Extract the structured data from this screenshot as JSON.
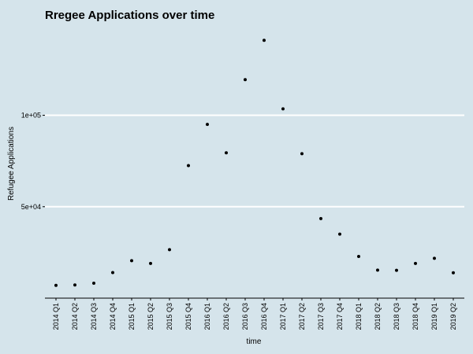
{
  "chart_data": {
    "type": "scatter",
    "title": "Rregee Applications over time",
    "xlabel": "time",
    "ylabel": "Refugee Applications",
    "categories": [
      "2014 Q1",
      "2014 Q2",
      "2014 Q3",
      "2014 Q4",
      "2015 Q1",
      "2015 Q2",
      "2015 Q3",
      "2015 Q4",
      "2016 Q1",
      "2016 Q2",
      "2016 Q3",
      "2016 Q4",
      "2017 Q1",
      "2017 Q2",
      "2017 Q3",
      "2017 Q4",
      "2018 Q1",
      "2018 Q2",
      "2018 Q3",
      "2018 Q4",
      "2019 Q1",
      "2019 Q2"
    ],
    "values": [
      7000,
      7200,
      8200,
      14000,
      20500,
      19000,
      26500,
      72500,
      95000,
      79500,
      119500,
      141000,
      103500,
      79000,
      43500,
      35000,
      22800,
      15300,
      15200,
      19000,
      21800,
      13900
    ],
    "ylim": [
      0,
      151000
    ],
    "yticks": [
      50000,
      100000
    ],
    "ytick_labels": [
      "5e+04",
      "1e+05"
    ],
    "grid": "horizontal",
    "colors": {
      "background": "#d5e4eb",
      "gridline": "#ffffff",
      "point": "#000000"
    }
  }
}
